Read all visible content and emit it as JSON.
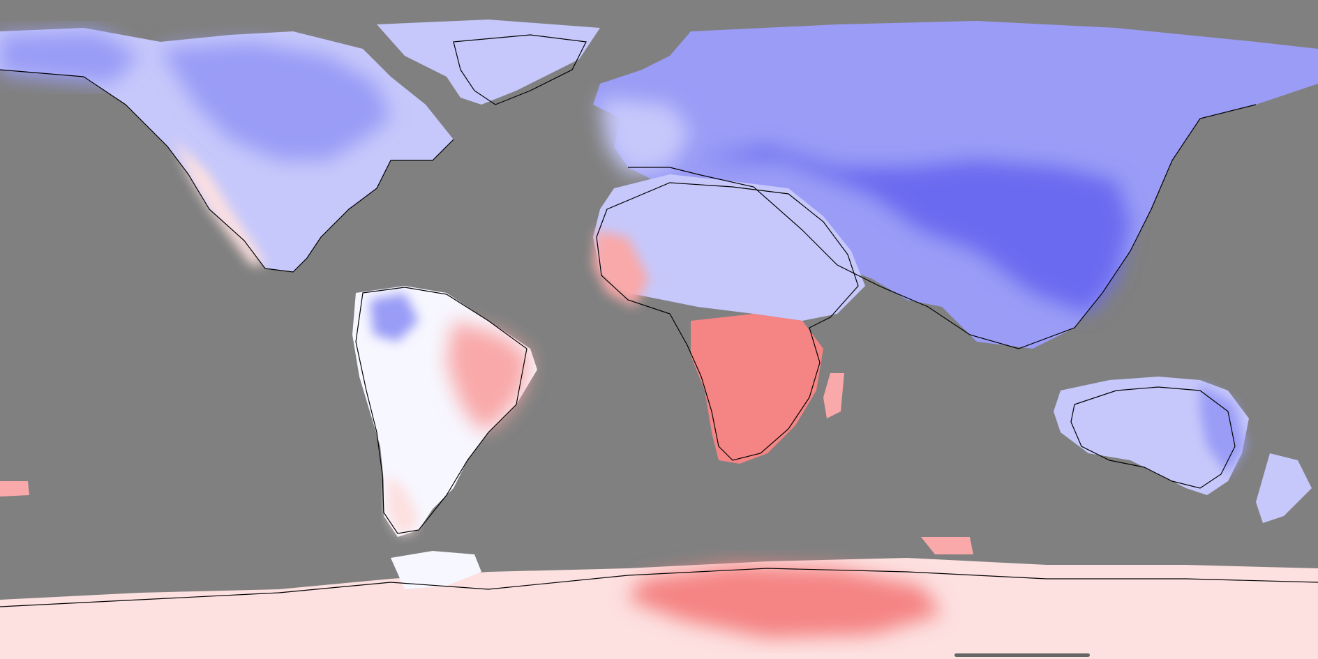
{
  "map": {
    "projection": "equirectangular",
    "lon_range": [
      -180,
      180
    ],
    "lat_range": [
      -90,
      90
    ],
    "ocean_color": "#808080",
    "coastline_color": "#000000",
    "scale_colors": {
      "strong_cool": "#6a6af0",
      "cool": "#9a9cf6",
      "light_cool": "#c6c8fb",
      "neutral": "#f7f7ff",
      "light_warm": "#fde0e0",
      "warm": "#f9a9a9",
      "strong_warm": "#f58484"
    },
    "regions": [
      {
        "name": "north-america",
        "tone": "light_cool"
      },
      {
        "name": "greenland",
        "tone": "light_cool"
      },
      {
        "name": "south-america",
        "tone": "warm"
      },
      {
        "name": "europe",
        "tone": "cool"
      },
      {
        "name": "africa-north",
        "tone": "light_cool"
      },
      {
        "name": "africa-south",
        "tone": "strong_warm"
      },
      {
        "name": "asia",
        "tone": "strong_cool"
      },
      {
        "name": "australia",
        "tone": "light_cool"
      },
      {
        "name": "antarctica",
        "tone": "warm"
      }
    ]
  },
  "ui": {
    "home_indicator_color": "#666666"
  }
}
